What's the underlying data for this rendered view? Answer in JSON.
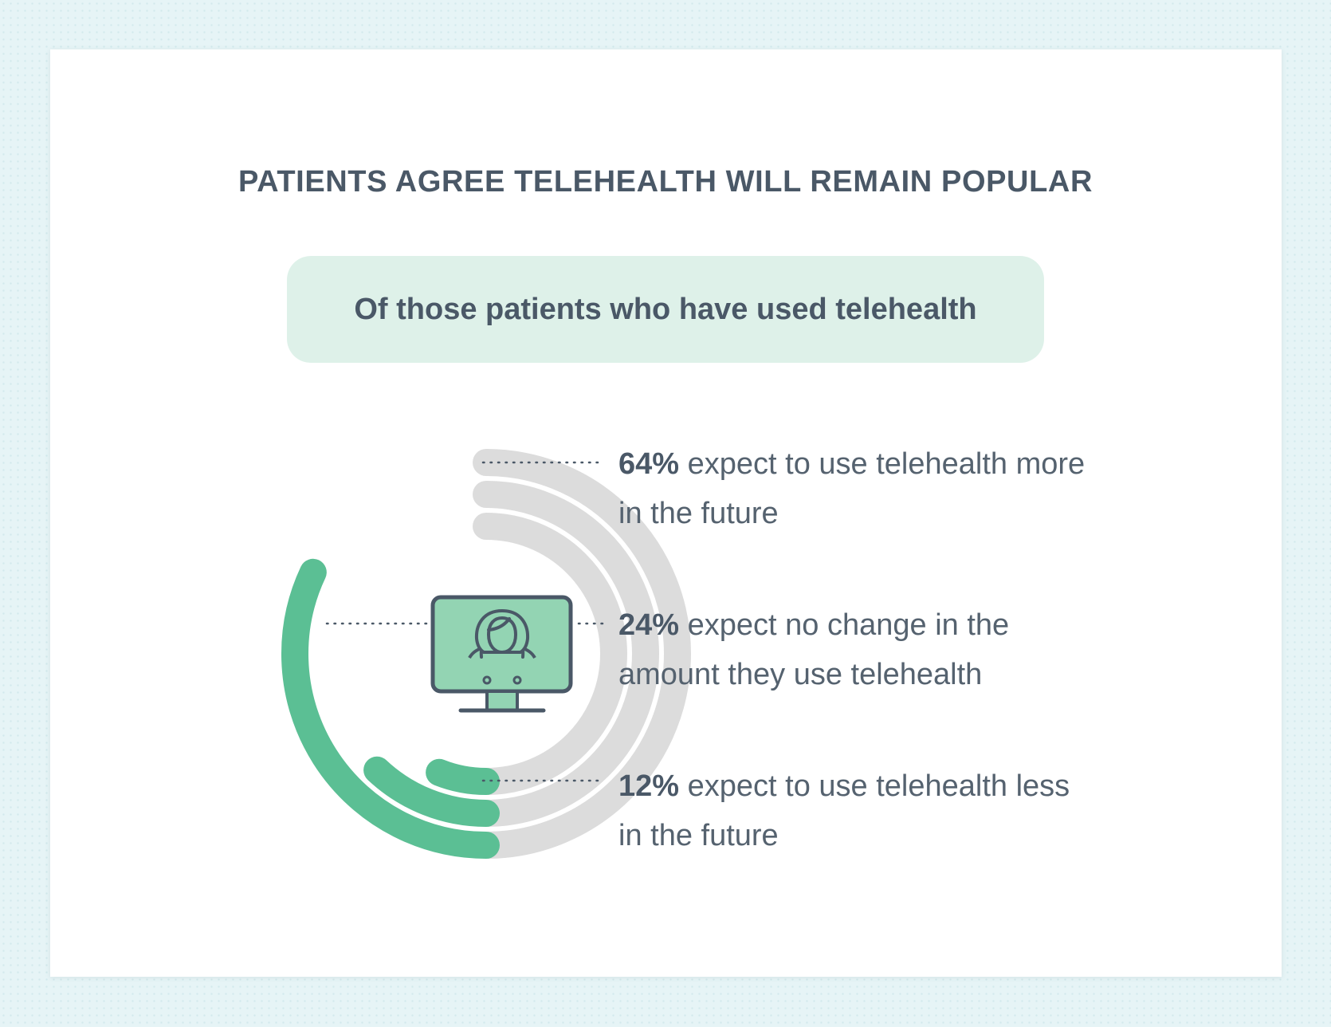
{
  "title": "PATIENTS AGREE TELEHEALTH WILL REMAIN POPULAR",
  "subtitle": "Of those patients who have used telehealth",
  "colors": {
    "accent": "#5bbf94",
    "track": "#dcdcdc",
    "text": "#4a5867",
    "pill": "#def1e9",
    "monitor_fill": "#93d4b3"
  },
  "icon": "doctor-on-monitor-icon",
  "chart_data": {
    "type": "radial-bar",
    "categories": [
      "expect to use telehealth more in the future",
      "expect no change in the amount they use telehealth",
      "expect to use telehealth less in the future"
    ],
    "values": [
      64,
      24,
      12
    ],
    "unit": "%"
  },
  "labels": [
    {
      "pct": "64%",
      "text": " expect to use telehealth more in the future"
    },
    {
      "pct": "24%",
      "text": " expect no change in the amount they use telehealth"
    },
    {
      "pct": "12%",
      "text": " expect to use telehealth less in the future"
    }
  ]
}
